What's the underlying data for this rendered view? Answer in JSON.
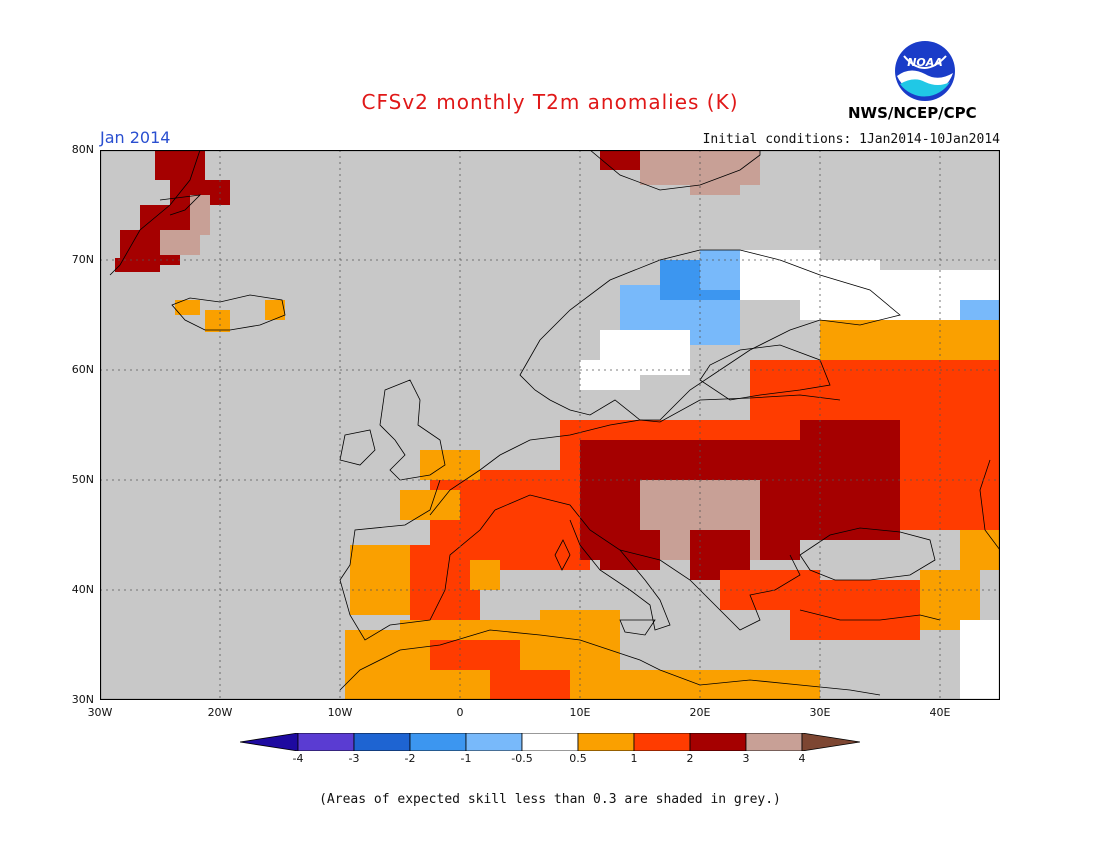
{
  "title": "CFSv2 monthly T2m anomalies (K)",
  "period": "Jan 2014",
  "initial_conditions": "Initial conditions: 1Jan2014-10Jan2014",
  "agency": "NWS/NCEP/CPC",
  "logo_text": "NOAA",
  "footnote": "(Areas of expected skill less than 0.3 are shaded in grey.)",
  "map": {
    "lon_range": [
      -30,
      45
    ],
    "lat_range": [
      30,
      80
    ],
    "lat_labels": [
      "80N",
      "70N",
      "60N",
      "50N",
      "40N",
      "30N"
    ],
    "lon_labels": [
      "30W",
      "20W",
      "10W",
      "0",
      "10E",
      "20E",
      "30E",
      "40E"
    ],
    "grid": "dotted",
    "colors": {
      "ocean_grey": "#c8c8c8",
      "coast": "#000000"
    }
  },
  "colorbar": {
    "levels": [
      "-4",
      "-3",
      "-2",
      "-1",
      "-0.5",
      "0.5",
      "1",
      "2",
      "3",
      "4"
    ],
    "colors": [
      "#1e0aa0",
      "#5a3cd2",
      "#1e64d2",
      "#3c96f0",
      "#78b9fa",
      "#ffffff",
      "#faa000",
      "#ff3c00",
      "#a50000",
      "#c8a096",
      "#7d4632"
    ]
  }
}
